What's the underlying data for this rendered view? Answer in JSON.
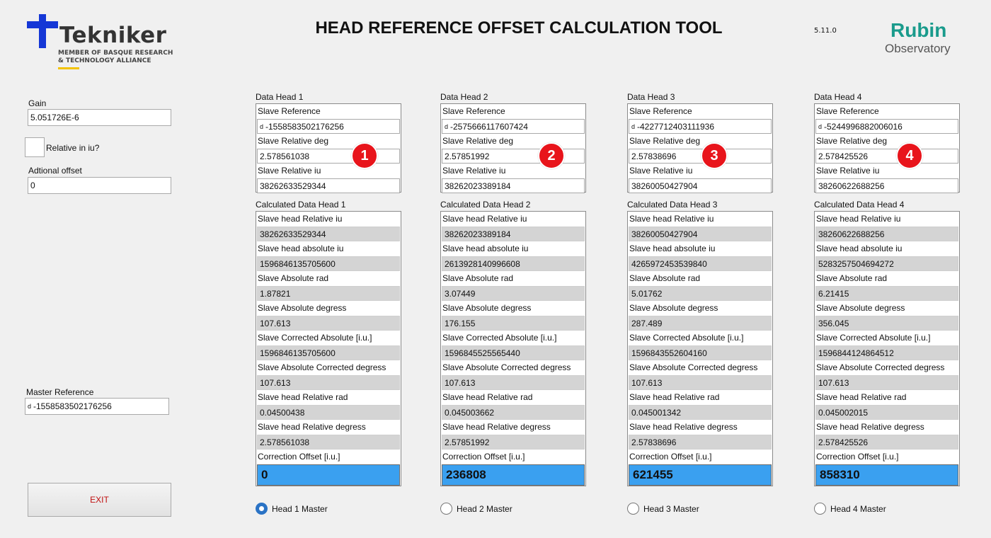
{
  "header": {
    "title": "HEAD REFERENCE OFFSET CALCULATION TOOL",
    "version": "5.11.0",
    "tekniker": {
      "name": "Tekniker",
      "line1": "MEMBER OF BASQUE RESEARCH",
      "line2": "& TECHNOLOGY ALLIANCE"
    },
    "rubin": {
      "line1": "Rubin",
      "line2": "Observatory"
    }
  },
  "left": {
    "gain_label": "Gain",
    "gain_value": "5.051726E-6",
    "relative_label": "Relative in iu?",
    "offset_label": "Adtional offset",
    "offset_value": "0",
    "master_label": "Master Reference",
    "master_prefix": "d",
    "master_value": "-1558583502176256",
    "exit_label": "EXIT"
  },
  "labels": {
    "slave_reference": "Slave Reference",
    "slave_relative_deg": "Slave Relative deg",
    "slave_relative_iu": "Slave Relative iu",
    "calc_head_relative_iu": "Slave head Relative iu",
    "calc_head_absolute_iu": "Slave head absolute iu",
    "calc_absolute_rad": "Slave Absolute rad",
    "calc_absolute_degress": "Slave Absolute degress",
    "calc_corrected_absolute": "Slave Corrected Absolute [i.u.]",
    "calc_absolute_corrected_degress": "Slave Absolute Corrected degress",
    "calc_head_relative_rad": "Slave head Relative rad",
    "calc_head_relative_degress": "Slave head Relative degress",
    "correction_offset": "Correction Offset [i.u.]",
    "ref_prefix": "d"
  },
  "heads": [
    {
      "data_title": "Data Head 1",
      "calc_title": "Calculated Data Head 1",
      "badge": "1",
      "slave_reference": "-1558583502176256",
      "slave_relative_deg": "2.578561038",
      "slave_relative_iu": "38262633529344",
      "head_relative_iu": "38262633529344",
      "head_absolute_iu": "1596846135705600",
      "absolute_rad": "1.87821",
      "absolute_degress": "107.613",
      "corrected_absolute": "1596846135705600",
      "absolute_corrected_degress": "107.613",
      "head_relative_rad": "0.04500438",
      "head_relative_degress": "2.578561038",
      "correction_offset": "0",
      "radio_label": "Head 1 Master",
      "selected": true
    },
    {
      "data_title": "Data Head 2",
      "calc_title": "Calculated Data Head 2",
      "badge": "2",
      "slave_reference": "-2575666117607424",
      "slave_relative_deg": "2.57851992",
      "slave_relative_iu": "38262023389184",
      "head_relative_iu": "38262023389184",
      "head_absolute_iu": "2613928140996608",
      "absolute_rad": "3.07449",
      "absolute_degress": "176.155",
      "corrected_absolute": "1596845525565440",
      "absolute_corrected_degress": "107.613",
      "head_relative_rad": "0.045003662",
      "head_relative_degress": "2.57851992",
      "correction_offset": "236808",
      "radio_label": "Head 2 Master",
      "selected": false
    },
    {
      "data_title": "Data Head 3",
      "calc_title": "Calculated Data Head 3",
      "badge": "3",
      "slave_reference": "-4227712403111936",
      "slave_relative_deg": "2.57838696",
      "slave_relative_iu": "38260050427904",
      "head_relative_iu": "38260050427904",
      "head_absolute_iu": "4265972453539840",
      "absolute_rad": "5.01762",
      "absolute_degress": "287.489",
      "corrected_absolute": "1596843552604160",
      "absolute_corrected_degress": "107.613",
      "head_relative_rad": "0.045001342",
      "head_relative_degress": "2.57838696",
      "correction_offset": "621455",
      "radio_label": "Head 3 Master",
      "selected": false
    },
    {
      "data_title": "Data Head 4",
      "calc_title": "Calculated Data Head 4",
      "badge": "4",
      "slave_reference": "-5244996882006016",
      "slave_relative_deg": "2.578425526",
      "slave_relative_iu": "38260622688256",
      "head_relative_iu": "38260622688256",
      "head_absolute_iu": "5283257504694272",
      "absolute_rad": "6.21415",
      "absolute_degress": "356.045",
      "corrected_absolute": "1596844124864512",
      "absolute_corrected_degress": "107.613",
      "head_relative_rad": "0.045002015",
      "head_relative_degress": "2.578425526",
      "correction_offset": "858310",
      "radio_label": "Head 4 Master",
      "selected": false
    }
  ],
  "colors": {
    "accent": "#3aa0f0",
    "badge": "#e8141b",
    "rubin": "#1a9b8c",
    "tekniker": "#1537d6",
    "exit_text": "#c01010"
  }
}
